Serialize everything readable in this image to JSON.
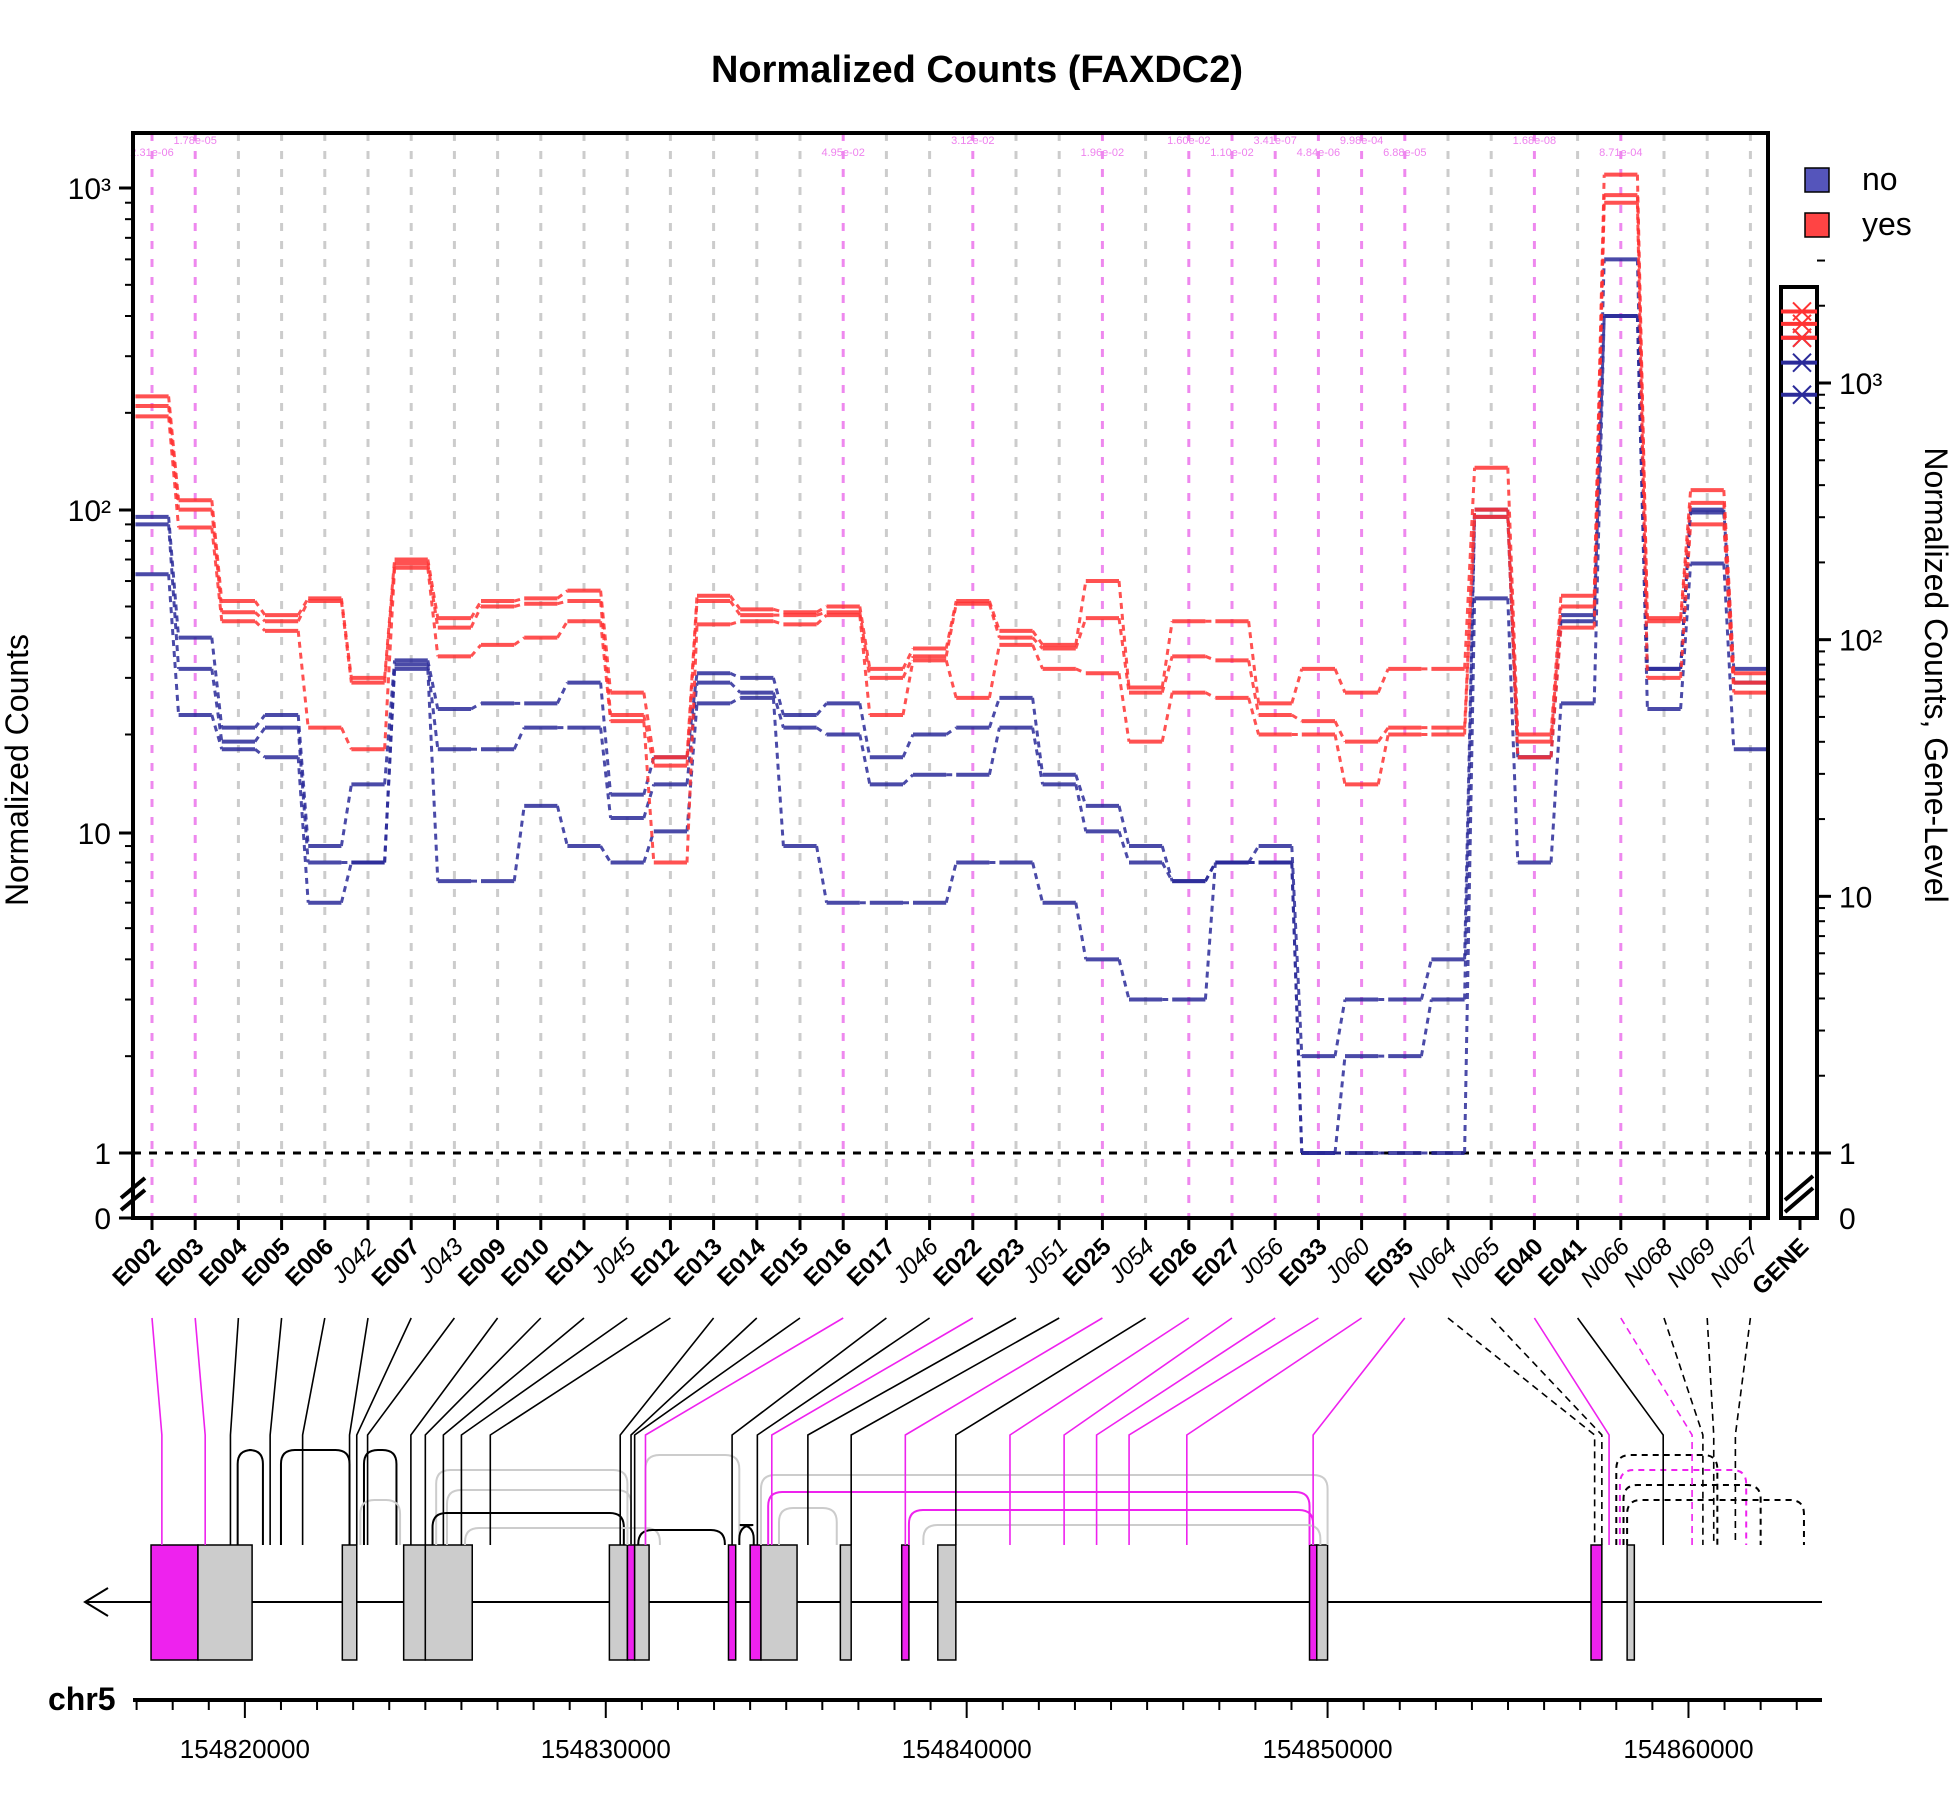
{
  "chart_data": {
    "type": "line",
    "title": "Normalized Counts (FAXDC2)",
    "ylabel": "Normalized Counts",
    "ylabel_right": "Normalized Counts, Gene-Level",
    "yscale": "log",
    "y_ticks": [
      "1",
      "10",
      "10²",
      "10³"
    ],
    "y_zero_label": "0",
    "y_ticks_right": [
      "1",
      "10",
      "10²",
      "10³"
    ],
    "y_zero_label_right": "0",
    "chromosome": "chr5",
    "x_ticks": [
      "154820000",
      "154830000",
      "154840000",
      "154850000",
      "154860000"
    ],
    "legend": {
      "position": "top-right",
      "entries": [
        {
          "label": "no",
          "color": "#5555bb"
        },
        {
          "label": "yes",
          "color": "#ff4444"
        }
      ]
    },
    "colors": {
      "no": "#2b2b99",
      "yes": "#ff3333",
      "significant": "#ee22ee",
      "nonsignificant": "#cccccc"
    },
    "features": [
      "E002",
      "E003",
      "E004",
      "E005",
      "E006",
      "J042",
      "E007",
      "J043",
      "E009",
      "E010",
      "E011",
      "J045",
      "E012",
      "E013",
      "E014",
      "E015",
      "E016",
      "E017",
      "J046",
      "E022",
      "E023",
      "J051",
      "E025",
      "J054",
      "E026",
      "E027",
      "J056",
      "E033",
      "J060",
      "E035",
      "N064",
      "N065",
      "E040",
      "E041",
      "N066",
      "N068",
      "N069",
      "N067",
      "GENE"
    ],
    "significant": [
      "E002",
      "E003",
      "E016",
      "E022",
      "E025",
      "E026",
      "E027",
      "J056",
      "E033",
      "J060",
      "E035",
      "E040",
      "N066"
    ],
    "pvalues": [
      "2.31e-06",
      "1.78e-05",
      "4.95e-02",
      "3.12e-02",
      "1.96e-02",
      "1.60e-02",
      "1.10e-02",
      "3.41e-07",
      "4.84e-06",
      "9.98e-04",
      "6.88e-05",
      "1.68e-08",
      "8.71e-04"
    ],
    "series": [
      {
        "name": "no",
        "values": [
          95,
          40,
          21,
          23,
          9,
          14,
          34,
          24,
          25,
          25,
          29,
          13,
          17,
          31,
          30,
          23,
          25,
          17,
          20,
          21,
          26,
          15,
          12,
          9,
          7,
          8,
          9,
          2,
          3,
          3,
          4,
          100,
          17,
          47,
          600,
          32,
          100,
          32,
          1500
        ]
      },
      {
        "name": "no",
        "values": [
          90,
          32,
          19,
          21,
          8,
          8,
          33,
          18,
          18,
          21,
          21,
          11,
          14,
          29,
          27,
          21,
          20,
          14,
          15,
          15,
          21,
          14,
          10,
          8,
          7,
          8,
          8,
          1,
          2,
          2,
          3,
          95,
          17,
          45,
          400,
          32,
          98,
          29,
          1200
        ]
      },
      {
        "name": "no",
        "values": [
          63,
          23,
          18,
          17,
          6,
          8,
          32,
          7,
          7,
          12,
          9,
          8,
          10,
          25,
          26,
          9,
          6,
          6,
          6,
          8,
          8,
          6,
          4,
          3,
          3,
          8,
          8,
          1,
          1,
          1,
          1,
          53,
          8,
          25,
          400,
          24,
          68,
          18,
          900
        ]
      },
      {
        "name": "yes",
        "values": [
          225,
          107,
          52,
          47,
          53,
          30,
          70,
          46,
          52,
          53,
          56,
          27,
          17,
          54,
          49,
          48,
          50,
          32,
          37,
          52,
          42,
          38,
          60,
          28,
          45,
          45,
          25,
          32,
          27,
          32,
          32,
          135,
          20,
          54,
          1100,
          46,
          115,
          31,
          1900
        ]
      },
      {
        "name": "yes",
        "values": [
          210,
          100,
          48,
          45,
          52,
          29,
          68,
          43,
          50,
          51,
          52,
          23,
          16,
          52,
          47,
          47,
          48,
          30,
          35,
          51,
          40,
          37,
          46,
          27,
          35,
          34,
          23,
          22,
          19,
          21,
          21,
          100,
          19,
          50,
          950,
          45,
          105,
          29,
          1700
        ]
      },
      {
        "name": "yes",
        "values": [
          195,
          88,
          45,
          42,
          21,
          18,
          66,
          35,
          38,
          40,
          45,
          22,
          8,
          44,
          45,
          44,
          47,
          23,
          34,
          26,
          38,
          32,
          31,
          19,
          27,
          26,
          20,
          20,
          14,
          20,
          20,
          95,
          17,
          43,
          900,
          30,
          90,
          27,
          1500
        ]
      }
    ]
  }
}
